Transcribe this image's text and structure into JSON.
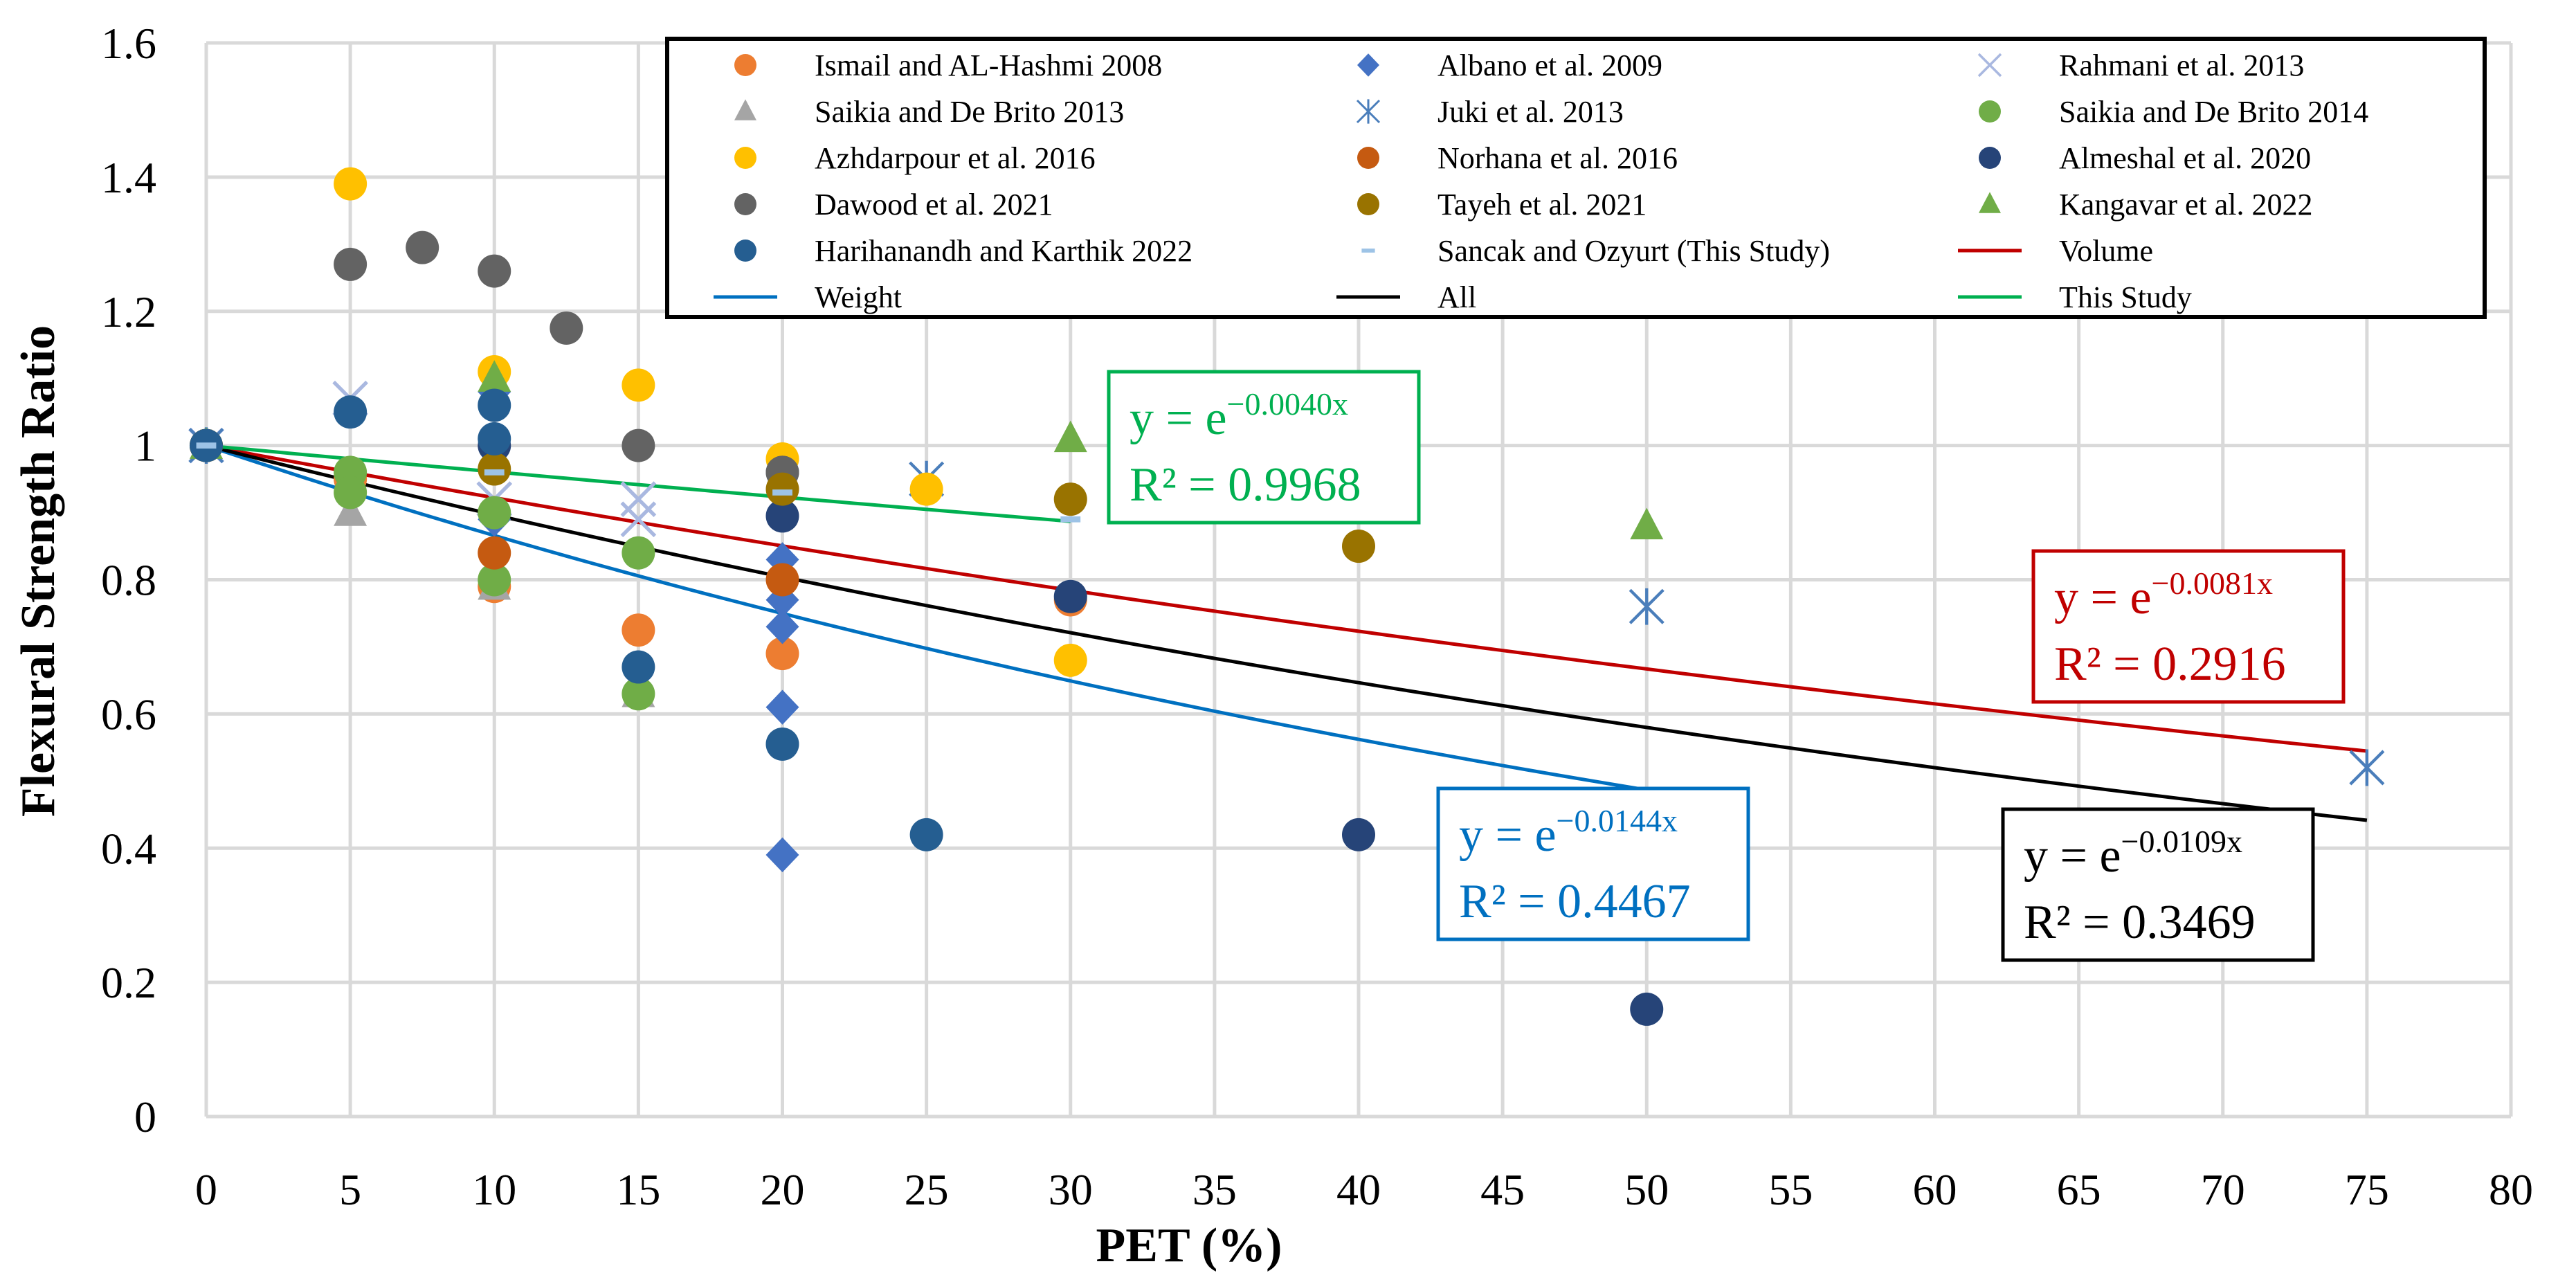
{
  "chart_data": {
    "type": "scatter",
    "xlabel": "PET (%)",
    "ylabel": "Flexural Strength Ratio",
    "xlim": [
      0,
      80
    ],
    "ylim": [
      0,
      1.6
    ],
    "xticks": [
      "0",
      "5",
      "10",
      "15",
      "20",
      "25",
      "30",
      "35",
      "40",
      "45",
      "50",
      "55",
      "60",
      "65",
      "70",
      "75",
      "80"
    ],
    "yticks": [
      "0",
      "0.2",
      "0.4",
      "0.6",
      "0.8",
      "1",
      "1.2",
      "1.4",
      "1.6"
    ],
    "grid": true,
    "legend_position": "top",
    "series": [
      {
        "name": "Ismail and AL-Hashmi 2008",
        "marker": "circle",
        "color": "#ED7D31",
        "points": [
          [
            0,
            1.0
          ],
          [
            5,
            0.95
          ],
          [
            10,
            0.79
          ],
          [
            15,
            0.725
          ],
          [
            20,
            0.69
          ],
          [
            30,
            0.77
          ]
        ]
      },
      {
        "name": "Albano et al. 2009",
        "marker": "diamond",
        "color": "#4472C4",
        "points": [
          [
            0,
            1.0
          ],
          [
            10,
            1.08
          ],
          [
            10,
            0.89
          ],
          [
            20,
            0.83
          ],
          [
            20,
            0.77
          ],
          [
            20,
            0.73
          ],
          [
            20,
            0.61
          ],
          [
            20,
            0.39
          ]
        ]
      },
      {
        "name": "Rahmani et al. 2013",
        "marker": "x",
        "color": "#A9B8E0",
        "points": [
          [
            0,
            1.0
          ],
          [
            5,
            1.07
          ],
          [
            10,
            0.92
          ],
          [
            15,
            0.92
          ],
          [
            15,
            0.89
          ]
        ]
      },
      {
        "name": "Saikia and De Brito 2013",
        "marker": "triangle",
        "color": "#A5A5A5",
        "points": [
          [
            0,
            1.0
          ],
          [
            5,
            0.9
          ],
          [
            10,
            0.79
          ],
          [
            15,
            0.63
          ]
        ]
      },
      {
        "name": "Juki et al. 2013",
        "marker": "star",
        "color": "#4A7EBB",
        "points": [
          [
            0,
            1.0
          ],
          [
            25,
            0.95
          ],
          [
            50,
            0.76
          ],
          [
            75,
            0.52
          ]
        ]
      },
      {
        "name": "Saikia and De Brito 2014",
        "marker": "circle",
        "color": "#70AD47",
        "points": [
          [
            0,
            1.0
          ],
          [
            5,
            0.96
          ],
          [
            5,
            0.93
          ],
          [
            10,
            0.9
          ],
          [
            10,
            0.8
          ],
          [
            15,
            0.84
          ],
          [
            15,
            0.63
          ]
        ]
      },
      {
        "name": "Azhdarpour et al. 2016",
        "marker": "circle",
        "color": "#FFC000",
        "points": [
          [
            0,
            1.0
          ],
          [
            5,
            1.39
          ],
          [
            10,
            1.11
          ],
          [
            15,
            1.09
          ],
          [
            20,
            0.98
          ],
          [
            25,
            0.935
          ],
          [
            30,
            0.68
          ]
        ]
      },
      {
        "name": "Norhana et al. 2016",
        "marker": "circle",
        "color": "#C55A11",
        "points": [
          [
            0,
            1.0
          ],
          [
            10,
            0.84
          ],
          [
            20,
            0.8
          ]
        ]
      },
      {
        "name": "Almeshal et al. 2020",
        "marker": "circle",
        "color": "#264478",
        "points": [
          [
            0,
            1.0
          ],
          [
            10,
            1.0
          ],
          [
            20,
            0.96
          ],
          [
            20,
            0.895
          ],
          [
            30,
            0.775
          ],
          [
            40,
            0.42
          ],
          [
            50,
            0.16
          ]
        ]
      },
      {
        "name": "Dawood et al. 2021",
        "marker": "circle",
        "color": "#636363",
        "points": [
          [
            0,
            1.0
          ],
          [
            5,
            1.27
          ],
          [
            7.5,
            1.295
          ],
          [
            10,
            1.26
          ],
          [
            12.5,
            1.175
          ],
          [
            15,
            1.0
          ],
          [
            20,
            0.96
          ]
        ]
      },
      {
        "name": "Tayeh et al. 2021",
        "marker": "circle",
        "color": "#997300",
        "points": [
          [
            0,
            1.0
          ],
          [
            10,
            0.965
          ],
          [
            20,
            0.935
          ],
          [
            30,
            0.92
          ],
          [
            40,
            0.85
          ]
        ]
      },
      {
        "name": "Kangavar et al. 2022",
        "marker": "triangle",
        "color": "#70AD47",
        "points": [
          [
            0,
            1.0
          ],
          [
            10,
            1.1
          ],
          [
            30,
            1.01
          ],
          [
            50,
            0.88
          ]
        ]
      },
      {
        "name": "Harihanandh and Karthik 2022",
        "marker": "circle",
        "color": "#255E91",
        "points": [
          [
            0,
            1.0
          ],
          [
            5,
            1.05
          ],
          [
            10,
            1.06
          ],
          [
            10,
            1.01
          ],
          [
            15,
            0.67
          ],
          [
            20,
            0.555
          ],
          [
            25,
            0.42
          ]
        ]
      },
      {
        "name": "Sancak and Ozyurt (This Study)",
        "marker": "dash",
        "color": "#9DC3E6",
        "points": [
          [
            0,
            1.0
          ],
          [
            10,
            0.96
          ],
          [
            20,
            0.93
          ],
          [
            30,
            0.89
          ]
        ]
      }
    ],
    "trendlines": [
      {
        "name": "Volume",
        "color": "#C00000",
        "k": -0.0081,
        "range": [
          0,
          75
        ],
        "equation": "y = e",
        "exponent": "−0.0081x",
        "r2": "R² = 0.2916"
      },
      {
        "name": "Weight",
        "color": "#0070C0",
        "k": -0.0144,
        "range": [
          0,
          50
        ],
        "equation": "y = e",
        "exponent": "−0.0144x",
        "r2": "R² = 0.4467"
      },
      {
        "name": "All",
        "color": "#000000",
        "k": -0.0109,
        "range": [
          0,
          75
        ],
        "equation": "y = e",
        "exponent": "−0.0109x",
        "r2": "R² = 0.3469"
      },
      {
        "name": "This Study",
        "color": "#00B050",
        "k": -0.004,
        "range": [
          0,
          30
        ],
        "equation": "y = e",
        "exponent": "−0.0040x",
        "r2": "R² = 0.9968"
      }
    ],
    "legend_entries": [
      {
        "label": "Ismail and AL-Hashmi 2008",
        "marker": "circle",
        "color": "#ED7D31"
      },
      {
        "label": "Albano et al. 2009",
        "marker": "diamond",
        "color": "#4472C4"
      },
      {
        "label": "Rahmani et al. 2013",
        "marker": "x",
        "color": "#A9B8E0"
      },
      {
        "label": "Saikia and De Brito 2013",
        "marker": "triangle",
        "color": "#A5A5A5"
      },
      {
        "label": "Juki et al. 2013",
        "marker": "star",
        "color": "#4A7EBB"
      },
      {
        "label": "Saikia and De Brito 2014",
        "marker": "circle",
        "color": "#70AD47"
      },
      {
        "label": "Azhdarpour et al. 2016",
        "marker": "circle",
        "color": "#FFC000"
      },
      {
        "label": "Norhana et al. 2016",
        "marker": "circle",
        "color": "#C55A11"
      },
      {
        "label": "Almeshal et al. 2020",
        "marker": "circle",
        "color": "#264478"
      },
      {
        "label": "Dawood et al. 2021",
        "marker": "circle",
        "color": "#636363"
      },
      {
        "label": "Tayeh et al. 2021",
        "marker": "circle",
        "color": "#997300"
      },
      {
        "label": "Kangavar et al. 2022",
        "marker": "triangle",
        "color": "#70AD47"
      },
      {
        "label": "Harihanandh and Karthik 2022",
        "marker": "circle",
        "color": "#255E91"
      },
      {
        "label": "Sancak and Ozyurt (This Study)",
        "marker": "dash",
        "color": "#9DC3E6"
      },
      {
        "label": "Volume",
        "marker": "line",
        "color": "#C00000"
      },
      {
        "label": "Weight",
        "marker": "line",
        "color": "#0070C0"
      },
      {
        "label": "All",
        "marker": "line",
        "color": "#000000"
      },
      {
        "label": "This Study",
        "marker": "line",
        "color": "#00B050"
      }
    ]
  }
}
